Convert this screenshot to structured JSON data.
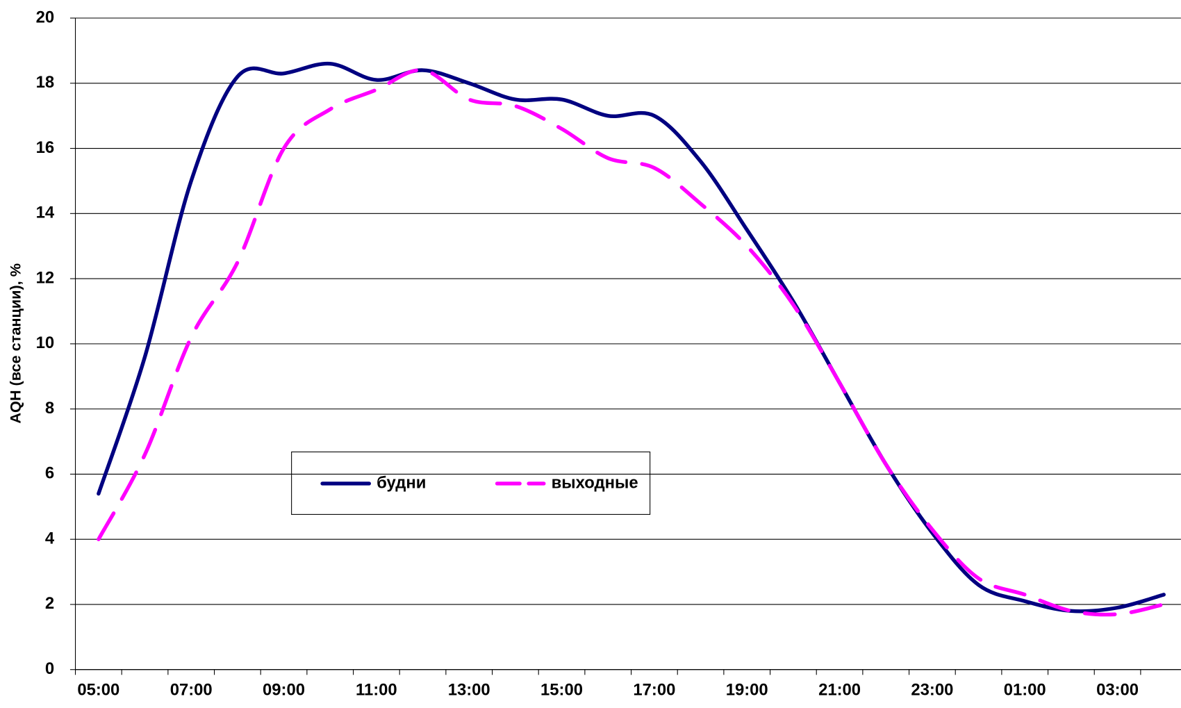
{
  "chart_data": {
    "type": "line",
    "y_label": "AQH (все станции), %",
    "categories": [
      "05:00",
      null,
      "07:00",
      null,
      "09:00",
      null,
      "11:00",
      null,
      "13:00",
      null,
      "15:00",
      null,
      "17:00",
      null,
      "19:00",
      null,
      "21:00",
      null,
      "23:00",
      null,
      "01:00",
      null,
      "03:00",
      null
    ],
    "series": [
      {
        "name": "будни",
        "color": "#000080",
        "dash": false,
        "values": [
          5.4,
          9.6,
          15.0,
          18.2,
          18.3,
          18.6,
          18.1,
          18.4,
          18.0,
          17.5,
          17.5,
          17.0,
          17.0,
          15.6,
          13.5,
          11.3,
          8.8,
          6.3,
          4.2,
          2.6,
          2.1,
          1.8,
          1.9,
          2.3
        ]
      },
      {
        "name": "выходные",
        "color": "#ff00ff",
        "dash": true,
        "values": [
          4.0,
          6.6,
          10.2,
          12.5,
          16.0,
          17.2,
          17.8,
          18.4,
          17.5,
          17.3,
          16.6,
          15.7,
          15.4,
          14.3,
          13.0,
          11.2,
          8.8,
          6.3,
          4.3,
          2.8,
          2.3,
          1.8,
          1.7,
          2.0
        ]
      }
    ],
    "ylim": [
      0,
      20
    ],
    "yticks": [
      0,
      2,
      4,
      6,
      8,
      10,
      12,
      14,
      16,
      18,
      20
    ],
    "grid": true,
    "smooth": true
  }
}
